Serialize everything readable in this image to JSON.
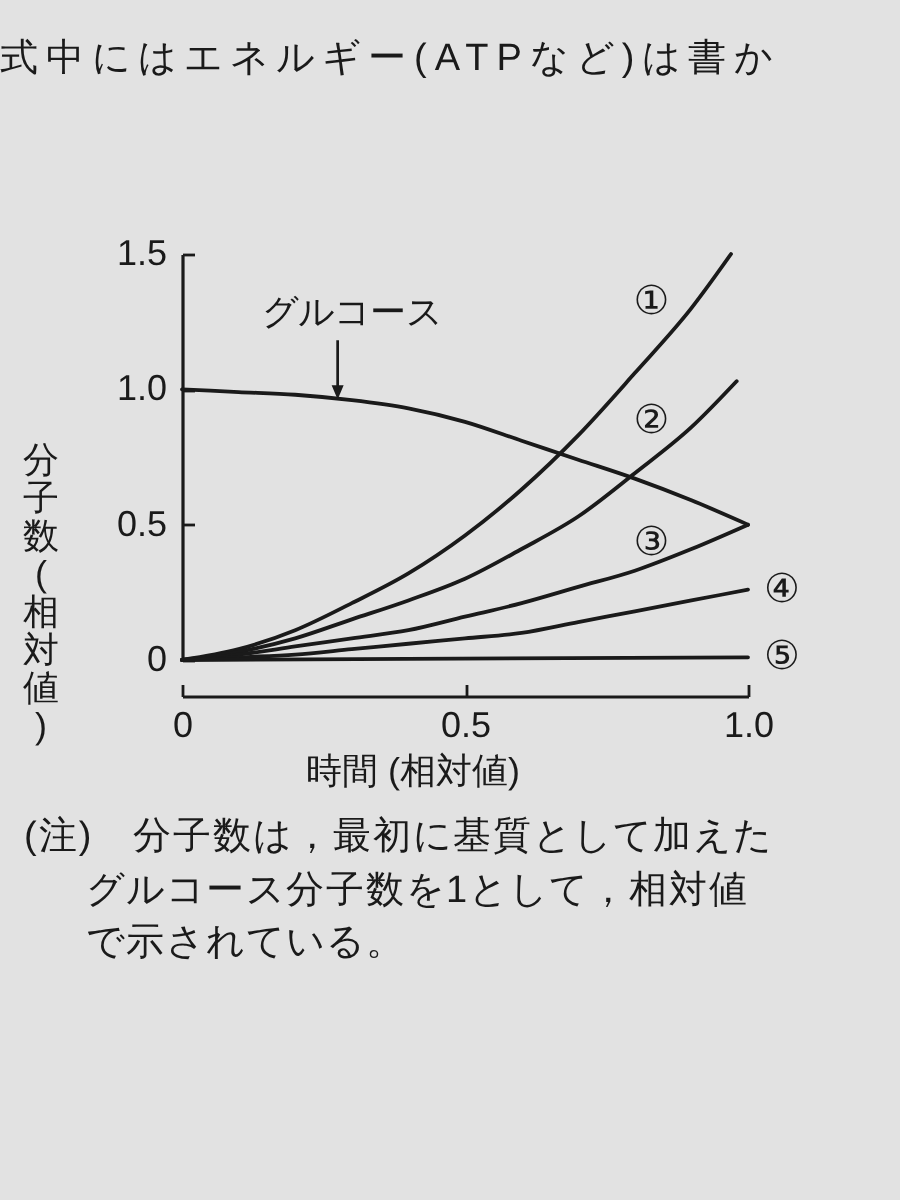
{
  "chart_data": {
    "type": "line",
    "xlabel": "時間 (相対値)",
    "ylabel": "分子数 (相対値)",
    "xlim": [
      0,
      1.0
    ],
    "xticks": [
      0,
      0.5,
      {
        "value": 1.0,
        "label": "1.0"
      }
    ],
    "ylim": [
      0,
      1.5
    ],
    "yticks": [
      0,
      0.5,
      {
        "value": 1.0,
        "label": "1.0"
      },
      1.5
    ],
    "series": [
      {
        "color": "#1a1a1a",
        "x": [
          0,
          0.1,
          0.2,
          0.3,
          0.4,
          0.5,
          0.6,
          0.7,
          0.8,
          0.9,
          1.0
        ],
        "values": [
          1.0,
          0.99,
          0.98,
          0.96,
          0.93,
          0.88,
          0.81,
          0.74,
          0.67,
          0.59,
          0.5
        ]
      },
      {
        "name": "①",
        "color": "#1a1a1a",
        "x": [
          0,
          0.1,
          0.2,
          0.3,
          0.4,
          0.5,
          0.6,
          0.7,
          0.8,
          0.9,
          0.97
        ],
        "values": [
          0,
          0.04,
          0.11,
          0.21,
          0.32,
          0.46,
          0.63,
          0.83,
          1.06,
          1.3,
          1.5
        ]
      },
      {
        "name": "②",
        "color": "#1a1a1a",
        "x": [
          0,
          0.1,
          0.2,
          0.3,
          0.4,
          0.5,
          0.6,
          0.7,
          0.8,
          0.9,
          0.98
        ],
        "values": [
          0,
          0.03,
          0.08,
          0.15,
          0.22,
          0.3,
          0.41,
          0.53,
          0.69,
          0.86,
          1.03
        ]
      },
      {
        "name": "③",
        "color": "#1a1a1a",
        "x": [
          0,
          0.1,
          0.2,
          0.3,
          0.4,
          0.5,
          0.6,
          0.7,
          0.8,
          0.9,
          1.0
        ],
        "values": [
          0,
          0.02,
          0.05,
          0.08,
          0.11,
          0.16,
          0.21,
          0.27,
          0.33,
          0.41,
          0.5
        ]
      },
      {
        "name": "④",
        "color": "#1a1a1a",
        "x": [
          0,
          0.1,
          0.2,
          0.3,
          0.4,
          0.5,
          0.6,
          0.7,
          0.8,
          0.9,
          1.0
        ],
        "values": [
          0,
          0.01,
          0.02,
          0.04,
          0.06,
          0.08,
          0.1,
          0.14,
          0.18,
          0.22,
          0.26
        ]
      },
      {
        "name": "⑤",
        "color": "#1a1a1a",
        "x": [
          0,
          1.0
        ],
        "values": [
          0,
          0.01
        ]
      }
    ],
    "annotations": [
      "式中にはエネルギー(ATPなど)は書か",
      {
        "text": "グルコース",
        "x": 0.275,
        "y": 0.96
      },
      "(注)　分子数は，最初に基質として加えたグルコース分子数を1として，相対値で示されている。"
    ]
  }
}
